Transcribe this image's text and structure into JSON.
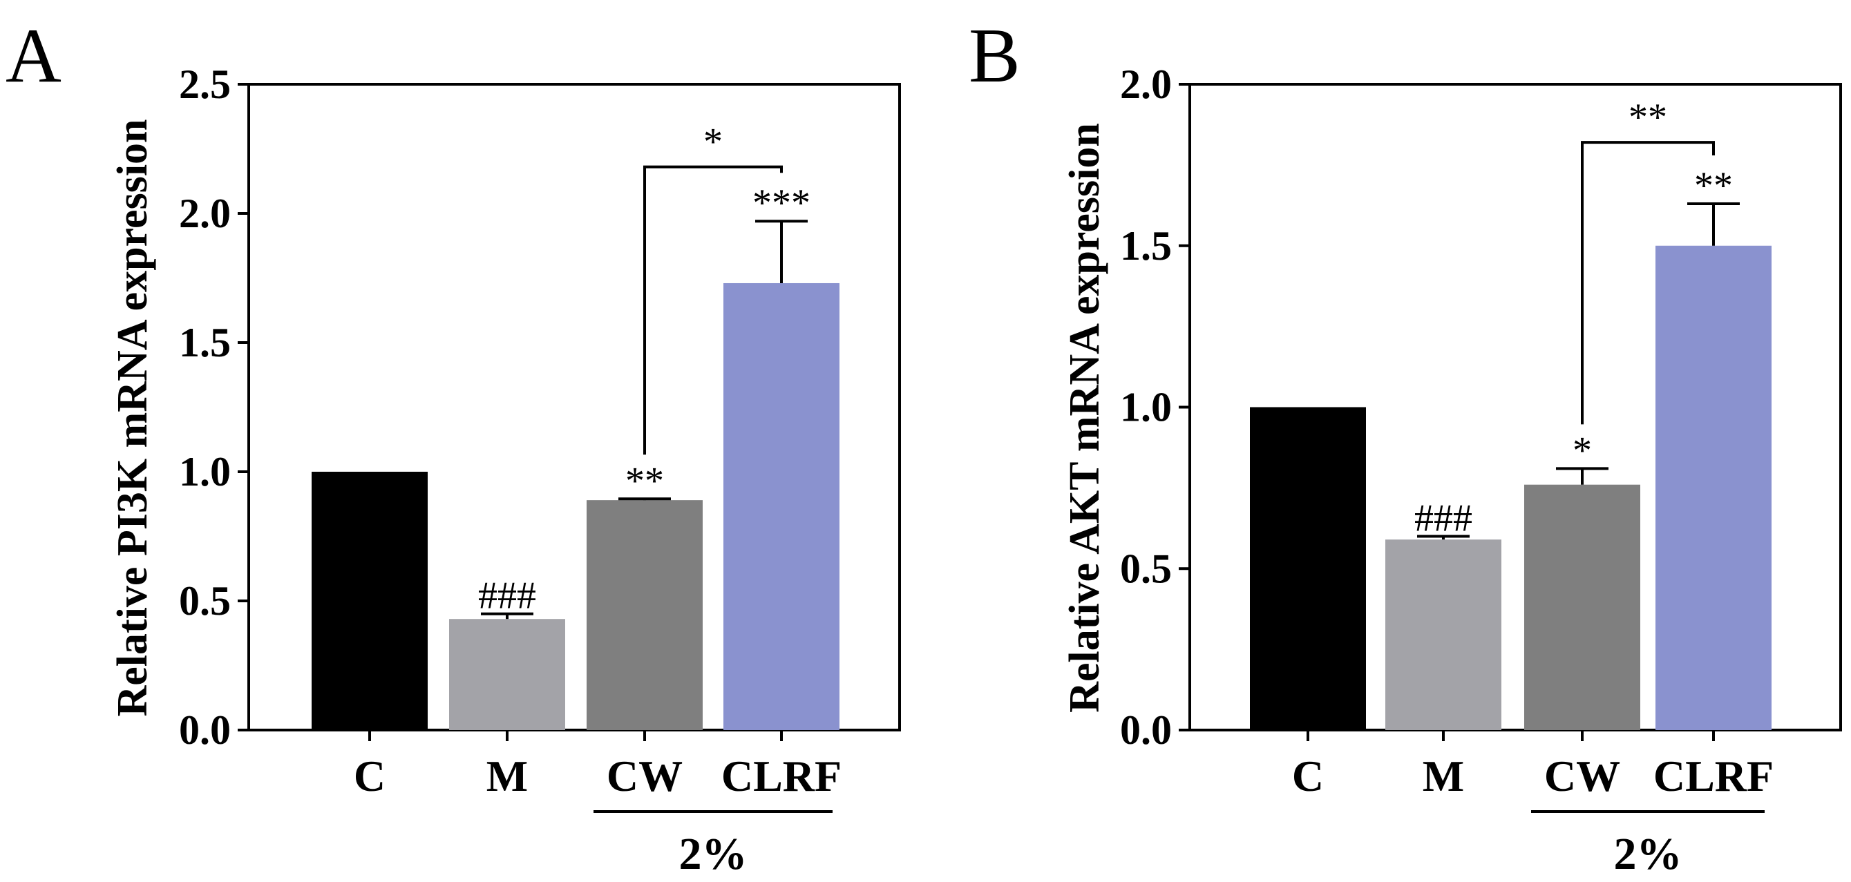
{
  "chart_data": [
    {
      "panel": "A",
      "type": "bar",
      "ylabel": "Relative PI3K mRNA expression",
      "ylim": [
        0,
        2.5
      ],
      "yticks": [
        "0.0",
        "0.5",
        "1.0",
        "1.5",
        "2.0",
        "2.5"
      ],
      "ytick_values": [
        0,
        0.5,
        1.0,
        1.5,
        2.0,
        2.5
      ],
      "categories": [
        "C",
        "M",
        "CW",
        "CLRF"
      ],
      "values": [
        1.0,
        0.43,
        0.89,
        1.73
      ],
      "errors": [
        0.0,
        0.02,
        0.005,
        0.24
      ],
      "colors": [
        "#000000",
        "#a3a3a8",
        "#7f7f7f",
        "#8a92cf"
      ],
      "bar_annotations": [
        "",
        "###",
        "**",
        "***"
      ],
      "group": {
        "label": "2%",
        "from": 2,
        "to": 3
      },
      "comparison": {
        "from": 2,
        "to": 3,
        "label": "*",
        "y": 2.18
      }
    },
    {
      "panel": "B",
      "type": "bar",
      "ylabel": "Relative  AKT mRNA expression",
      "ylim": [
        0,
        2.0
      ],
      "yticks": [
        "0.0",
        "0.5",
        "1.0",
        "1.5",
        "2.0"
      ],
      "ytick_values": [
        0,
        0.5,
        1.0,
        1.5,
        2.0
      ],
      "categories": [
        "C",
        "M",
        "CW",
        "CLRF"
      ],
      "values": [
        1.0,
        0.59,
        0.76,
        1.5
      ],
      "errors": [
        0.0,
        0.01,
        0.05,
        0.13
      ],
      "colors": [
        "#000000",
        "#a3a3a8",
        "#7f7f7f",
        "#8a92cf"
      ],
      "bar_annotations": [
        "",
        "###",
        "*",
        "**"
      ],
      "group": {
        "label": "2%",
        "from": 2,
        "to": 3
      },
      "comparison": {
        "from": 2,
        "to": 3,
        "label": "**",
        "y": 1.82
      }
    }
  ]
}
